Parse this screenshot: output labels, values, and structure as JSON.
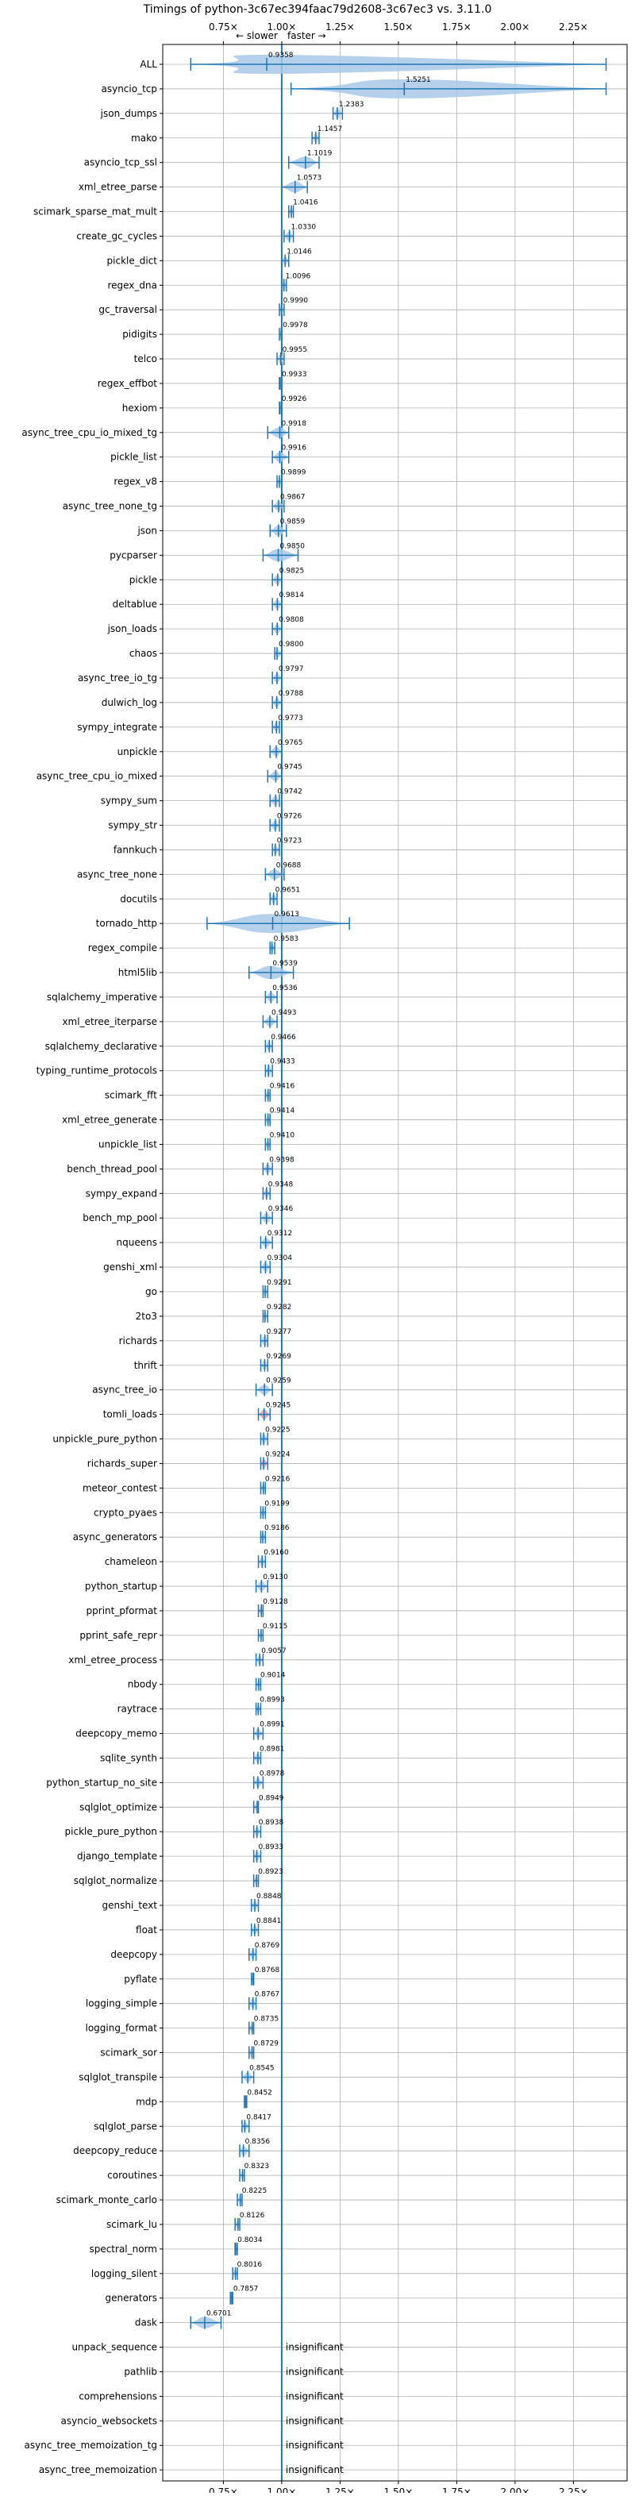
{
  "chart_data": {
    "type": "violin",
    "title": "Timings of python-3c67ec394faac79d2608-3c67ec3 vs. 3.11.0",
    "direction_labels": {
      "slower": "← slower",
      "faster": "faster →"
    },
    "x_ticks": [
      "0.75×",
      "1.00×",
      "1.25×",
      "1.50×",
      "1.75×",
      "2.00×",
      "2.25×"
    ],
    "x_tick_values": [
      0.75,
      1.0,
      1.25,
      1.5,
      1.75,
      2.0,
      2.25
    ],
    "xlim": [
      0.49,
      2.48
    ],
    "reference_line": 1.0,
    "grid": true,
    "insignificant_label": "insignificant",
    "colors": {
      "violin": "#a8c8e8",
      "marker": "#1f77b4",
      "highlight": "#e89aa6",
      "reference": "#1f77b4"
    },
    "benchmarks": [
      {
        "name": "ALL",
        "value": 0.9358,
        "label": "0.9358",
        "min": 0.61,
        "max": 2.39
      },
      {
        "name": "asyncio_tcp",
        "value": 1.5251,
        "label": "1.5251",
        "min": 1.04,
        "max": 2.39
      },
      {
        "name": "json_dumps",
        "value": 1.2383,
        "label": "1.2383",
        "min": 1.22,
        "max": 1.26
      },
      {
        "name": "mako",
        "value": 1.1457,
        "label": "1.1457",
        "min": 1.13,
        "max": 1.16
      },
      {
        "name": "asyncio_tcp_ssl",
        "value": 1.1019,
        "label": "1.1019",
        "min": 1.03,
        "max": 1.16
      },
      {
        "name": "xml_etree_parse",
        "value": 1.0573,
        "label": "1.0573",
        "min": 1.0,
        "max": 1.11
      },
      {
        "name": "scimark_sparse_mat_mult",
        "value": 1.0416,
        "label": "1.0416",
        "min": 1.03,
        "max": 1.05
      },
      {
        "name": "create_gc_cycles",
        "value": 1.033,
        "label": "1.0330",
        "min": 1.01,
        "max": 1.05
      },
      {
        "name": "pickle_dict",
        "value": 1.0146,
        "label": "1.0146",
        "min": 1.0,
        "max": 1.03
      },
      {
        "name": "regex_dna",
        "value": 1.0096,
        "label": "1.0096",
        "min": 1.0,
        "max": 1.02
      },
      {
        "name": "gc_traversal",
        "value": 0.999,
        "label": "0.9990",
        "min": 0.99,
        "max": 1.01
      },
      {
        "name": "pidigits",
        "value": 0.9978,
        "label": "0.9978",
        "min": 0.99,
        "max": 1.0
      },
      {
        "name": "telco",
        "value": 0.9955,
        "label": "0.9955",
        "min": 0.98,
        "max": 1.01
      },
      {
        "name": "regex_effbot",
        "value": 0.9933,
        "label": "0.9933",
        "min": 0.99,
        "max": 1.0
      },
      {
        "name": "hexiom",
        "value": 0.9926,
        "label": "0.9926",
        "min": 0.99,
        "max": 1.0
      },
      {
        "name": "async_tree_cpu_io_mixed_tg",
        "value": 0.9918,
        "label": "0.9918",
        "min": 0.94,
        "max": 1.03
      },
      {
        "name": "pickle_list",
        "value": 0.9916,
        "label": "0.9916",
        "min": 0.96,
        "max": 1.03
      },
      {
        "name": "regex_v8",
        "value": 0.9899,
        "label": "0.9899",
        "min": 0.98,
        "max": 1.0
      },
      {
        "name": "async_tree_none_tg",
        "value": 0.9867,
        "label": "0.9867",
        "min": 0.96,
        "max": 1.01
      },
      {
        "name": "json",
        "value": 0.9859,
        "label": "0.9859",
        "min": 0.95,
        "max": 1.02
      },
      {
        "name": "pycparser",
        "value": 0.985,
        "label": "0.9850",
        "min": 0.92,
        "max": 1.07
      },
      {
        "name": "pickle",
        "value": 0.9825,
        "label": "0.9825",
        "min": 0.96,
        "max": 1.0
      },
      {
        "name": "deltablue",
        "value": 0.9814,
        "label": "0.9814",
        "min": 0.96,
        "max": 1.0
      },
      {
        "name": "json_loads",
        "value": 0.9808,
        "label": "0.9808",
        "min": 0.96,
        "max": 1.0
      },
      {
        "name": "chaos",
        "value": 0.98,
        "label": "0.9800",
        "min": 0.97,
        "max": 1.0
      },
      {
        "name": "async_tree_io_tg",
        "value": 0.9797,
        "label": "0.9797",
        "min": 0.96,
        "max": 1.0
      },
      {
        "name": "dulwich_log",
        "value": 0.9788,
        "label": "0.9788",
        "min": 0.96,
        "max": 1.0
      },
      {
        "name": "sympy_integrate",
        "value": 0.9773,
        "label": "0.9773",
        "min": 0.96,
        "max": 0.99
      },
      {
        "name": "unpickle",
        "value": 0.9765,
        "label": "0.9765",
        "min": 0.95,
        "max": 1.0
      },
      {
        "name": "async_tree_cpu_io_mixed",
        "value": 0.9745,
        "label": "0.9745",
        "min": 0.94,
        "max": 1.0
      },
      {
        "name": "sympy_sum",
        "value": 0.9742,
        "label": "0.9742",
        "min": 0.95,
        "max": 0.99
      },
      {
        "name": "sympy_str",
        "value": 0.9726,
        "label": "0.9726",
        "min": 0.95,
        "max": 0.99
      },
      {
        "name": "fannkuch",
        "value": 0.9723,
        "label": "0.9723",
        "min": 0.96,
        "max": 0.99
      },
      {
        "name": "async_tree_none",
        "value": 0.9688,
        "label": "0.9688",
        "min": 0.93,
        "max": 1.01
      },
      {
        "name": "docutils",
        "value": 0.9651,
        "label": "0.9651",
        "min": 0.95,
        "max": 0.98
      },
      {
        "name": "tornado_http",
        "value": 0.9613,
        "label": "0.9613",
        "min": 0.68,
        "max": 1.29
      },
      {
        "name": "regex_compile",
        "value": 0.9583,
        "label": "0.9583",
        "min": 0.95,
        "max": 0.97
      },
      {
        "name": "html5lib",
        "value": 0.9539,
        "label": "0.9539",
        "min": 0.86,
        "max": 1.05
      },
      {
        "name": "sqlalchemy_imperative",
        "value": 0.9536,
        "label": "0.9536",
        "min": 0.93,
        "max": 0.98
      },
      {
        "name": "xml_etree_iterparse",
        "value": 0.9493,
        "label": "0.9493",
        "min": 0.92,
        "max": 0.98
      },
      {
        "name": "sqlalchemy_declarative",
        "value": 0.9466,
        "label": "0.9466",
        "min": 0.93,
        "max": 0.96
      },
      {
        "name": "typing_runtime_protocols",
        "value": 0.9433,
        "label": "0.9433",
        "min": 0.93,
        "max": 0.96
      },
      {
        "name": "scimark_fft",
        "value": 0.9416,
        "label": "0.9416",
        "min": 0.93,
        "max": 0.95
      },
      {
        "name": "xml_etree_generate",
        "value": 0.9414,
        "label": "0.9414",
        "min": 0.93,
        "max": 0.95
      },
      {
        "name": "unpickle_list",
        "value": 0.941,
        "label": "0.9410",
        "min": 0.93,
        "max": 0.95
      },
      {
        "name": "bench_thread_pool",
        "value": 0.9398,
        "label": "0.9398",
        "min": 0.92,
        "max": 0.96
      },
      {
        "name": "sympy_expand",
        "value": 0.9348,
        "label": "0.9348",
        "min": 0.92,
        "max": 0.95
      },
      {
        "name": "bench_mp_pool",
        "value": 0.9346,
        "label": "0.9346",
        "min": 0.91,
        "max": 0.96
      },
      {
        "name": "nqueens",
        "value": 0.9312,
        "label": "0.9312",
        "min": 0.91,
        "max": 0.96
      },
      {
        "name": "genshi_xml",
        "value": 0.9304,
        "label": "0.9304",
        "min": 0.91,
        "max": 0.95
      },
      {
        "name": "go",
        "value": 0.9291,
        "label": "0.9291",
        "min": 0.92,
        "max": 0.94
      },
      {
        "name": "2to3",
        "value": 0.9282,
        "label": "0.9282",
        "min": 0.92,
        "max": 0.94
      },
      {
        "name": "richards",
        "value": 0.9277,
        "label": "0.9277",
        "min": 0.91,
        "max": 0.94
      },
      {
        "name": "thrift",
        "value": 0.9269,
        "label": "0.9269",
        "min": 0.91,
        "max": 0.94
      },
      {
        "name": "async_tree_io",
        "value": 0.9259,
        "label": "0.9259",
        "min": 0.89,
        "max": 0.96
      },
      {
        "name": "tomli_loads",
        "value": 0.9245,
        "label": "0.9245",
        "min": 0.9,
        "max": 0.95,
        "highlight": true
      },
      {
        "name": "unpickle_pure_python",
        "value": 0.9225,
        "label": "0.9225",
        "min": 0.91,
        "max": 0.94
      },
      {
        "name": "richards_super",
        "value": 0.9224,
        "label": "0.9224",
        "min": 0.91,
        "max": 0.94,
        "highlight": true
      },
      {
        "name": "meteor_contest",
        "value": 0.9216,
        "label": "0.9216",
        "min": 0.91,
        "max": 0.93
      },
      {
        "name": "crypto_pyaes",
        "value": 0.9199,
        "label": "0.9199",
        "min": 0.91,
        "max": 0.93
      },
      {
        "name": "async_generators",
        "value": 0.9186,
        "label": "0.9186",
        "min": 0.91,
        "max": 0.93
      },
      {
        "name": "chameleon",
        "value": 0.916,
        "label": "0.9160",
        "min": 0.9,
        "max": 0.93
      },
      {
        "name": "python_startup",
        "value": 0.913,
        "label": "0.9130",
        "min": 0.89,
        "max": 0.94
      },
      {
        "name": "pprint_pformat",
        "value": 0.9128,
        "label": "0.9128",
        "min": 0.9,
        "max": 0.92
      },
      {
        "name": "pprint_safe_repr",
        "value": 0.9115,
        "label": "0.9115",
        "min": 0.9,
        "max": 0.92
      },
      {
        "name": "xml_etree_process",
        "value": 0.9057,
        "label": "0.9057",
        "min": 0.89,
        "max": 0.92
      },
      {
        "name": "nbody",
        "value": 0.9014,
        "label": "0.9014",
        "min": 0.89,
        "max": 0.91
      },
      {
        "name": "raytrace",
        "value": 0.8993,
        "label": "0.8993",
        "min": 0.89,
        "max": 0.91
      },
      {
        "name": "deepcopy_memo",
        "value": 0.8991,
        "label": "0.8991",
        "min": 0.88,
        "max": 0.92
      },
      {
        "name": "sqlite_synth",
        "value": 0.8981,
        "label": "0.8981",
        "min": 0.88,
        "max": 0.91
      },
      {
        "name": "python_startup_no_site",
        "value": 0.8978,
        "label": "0.8978",
        "min": 0.88,
        "max": 0.92
      },
      {
        "name": "sqlglot_optimize",
        "value": 0.8949,
        "label": "0.8949",
        "min": 0.88,
        "max": 0.9
      },
      {
        "name": "pickle_pure_python",
        "value": 0.8938,
        "label": "0.8938",
        "min": 0.88,
        "max": 0.91
      },
      {
        "name": "django_template",
        "value": 0.8933,
        "label": "0.8933",
        "min": 0.88,
        "max": 0.91
      },
      {
        "name": "sqlglot_normalize",
        "value": 0.8923,
        "label": "0.8923",
        "min": 0.88,
        "max": 0.9
      },
      {
        "name": "genshi_text",
        "value": 0.8848,
        "label": "0.8848",
        "min": 0.87,
        "max": 0.9
      },
      {
        "name": "float",
        "value": 0.8841,
        "label": "0.8841",
        "min": 0.87,
        "max": 0.9
      },
      {
        "name": "deepcopy",
        "value": 0.8769,
        "label": "0.8769",
        "min": 0.86,
        "max": 0.89
      },
      {
        "name": "pyflate",
        "value": 0.8768,
        "label": "0.8768",
        "min": 0.87,
        "max": 0.88
      },
      {
        "name": "logging_simple",
        "value": 0.8767,
        "label": "0.8767",
        "min": 0.86,
        "max": 0.89
      },
      {
        "name": "logging_format",
        "value": 0.8735,
        "label": "0.8735",
        "min": 0.86,
        "max": 0.88
      },
      {
        "name": "scimark_sor",
        "value": 0.8729,
        "label": "0.8729",
        "min": 0.86,
        "max": 0.88
      },
      {
        "name": "sqlglot_transpile",
        "value": 0.8545,
        "label": "0.8545",
        "min": 0.83,
        "max": 0.88
      },
      {
        "name": "mdp",
        "value": 0.8452,
        "label": "0.8452",
        "min": 0.84,
        "max": 0.85
      },
      {
        "name": "sqlglot_parse",
        "value": 0.8417,
        "label": "0.8417",
        "min": 0.83,
        "max": 0.86
      },
      {
        "name": "deepcopy_reduce",
        "value": 0.8356,
        "label": "0.8356",
        "min": 0.82,
        "max": 0.86
      },
      {
        "name": "coroutines",
        "value": 0.8323,
        "label": "0.8323",
        "min": 0.82,
        "max": 0.84
      },
      {
        "name": "scimark_monte_carlo",
        "value": 0.8225,
        "label": "0.8225",
        "min": 0.81,
        "max": 0.83
      },
      {
        "name": "scimark_lu",
        "value": 0.8126,
        "label": "0.8126",
        "min": 0.8,
        "max": 0.82
      },
      {
        "name": "spectral_norm",
        "value": 0.8034,
        "label": "0.8034",
        "min": 0.8,
        "max": 0.81
      },
      {
        "name": "logging_silent",
        "value": 0.8016,
        "label": "0.8016",
        "min": 0.79,
        "max": 0.81
      },
      {
        "name": "generators",
        "value": 0.7857,
        "label": "0.7857",
        "min": 0.78,
        "max": 0.79
      },
      {
        "name": "dask",
        "value": 0.6701,
        "label": "0.6701",
        "min": 0.61,
        "max": 0.74
      },
      {
        "name": "unpack_sequence",
        "value": null,
        "insignificant": true
      },
      {
        "name": "pathlib",
        "value": null,
        "insignificant": true
      },
      {
        "name": "comprehensions",
        "value": null,
        "insignificant": true
      },
      {
        "name": "asyncio_websockets",
        "value": null,
        "insignificant": true
      },
      {
        "name": "async_tree_memoization_tg",
        "value": null,
        "insignificant": true
      },
      {
        "name": "async_tree_memoization",
        "value": null,
        "insignificant": true
      }
    ]
  }
}
